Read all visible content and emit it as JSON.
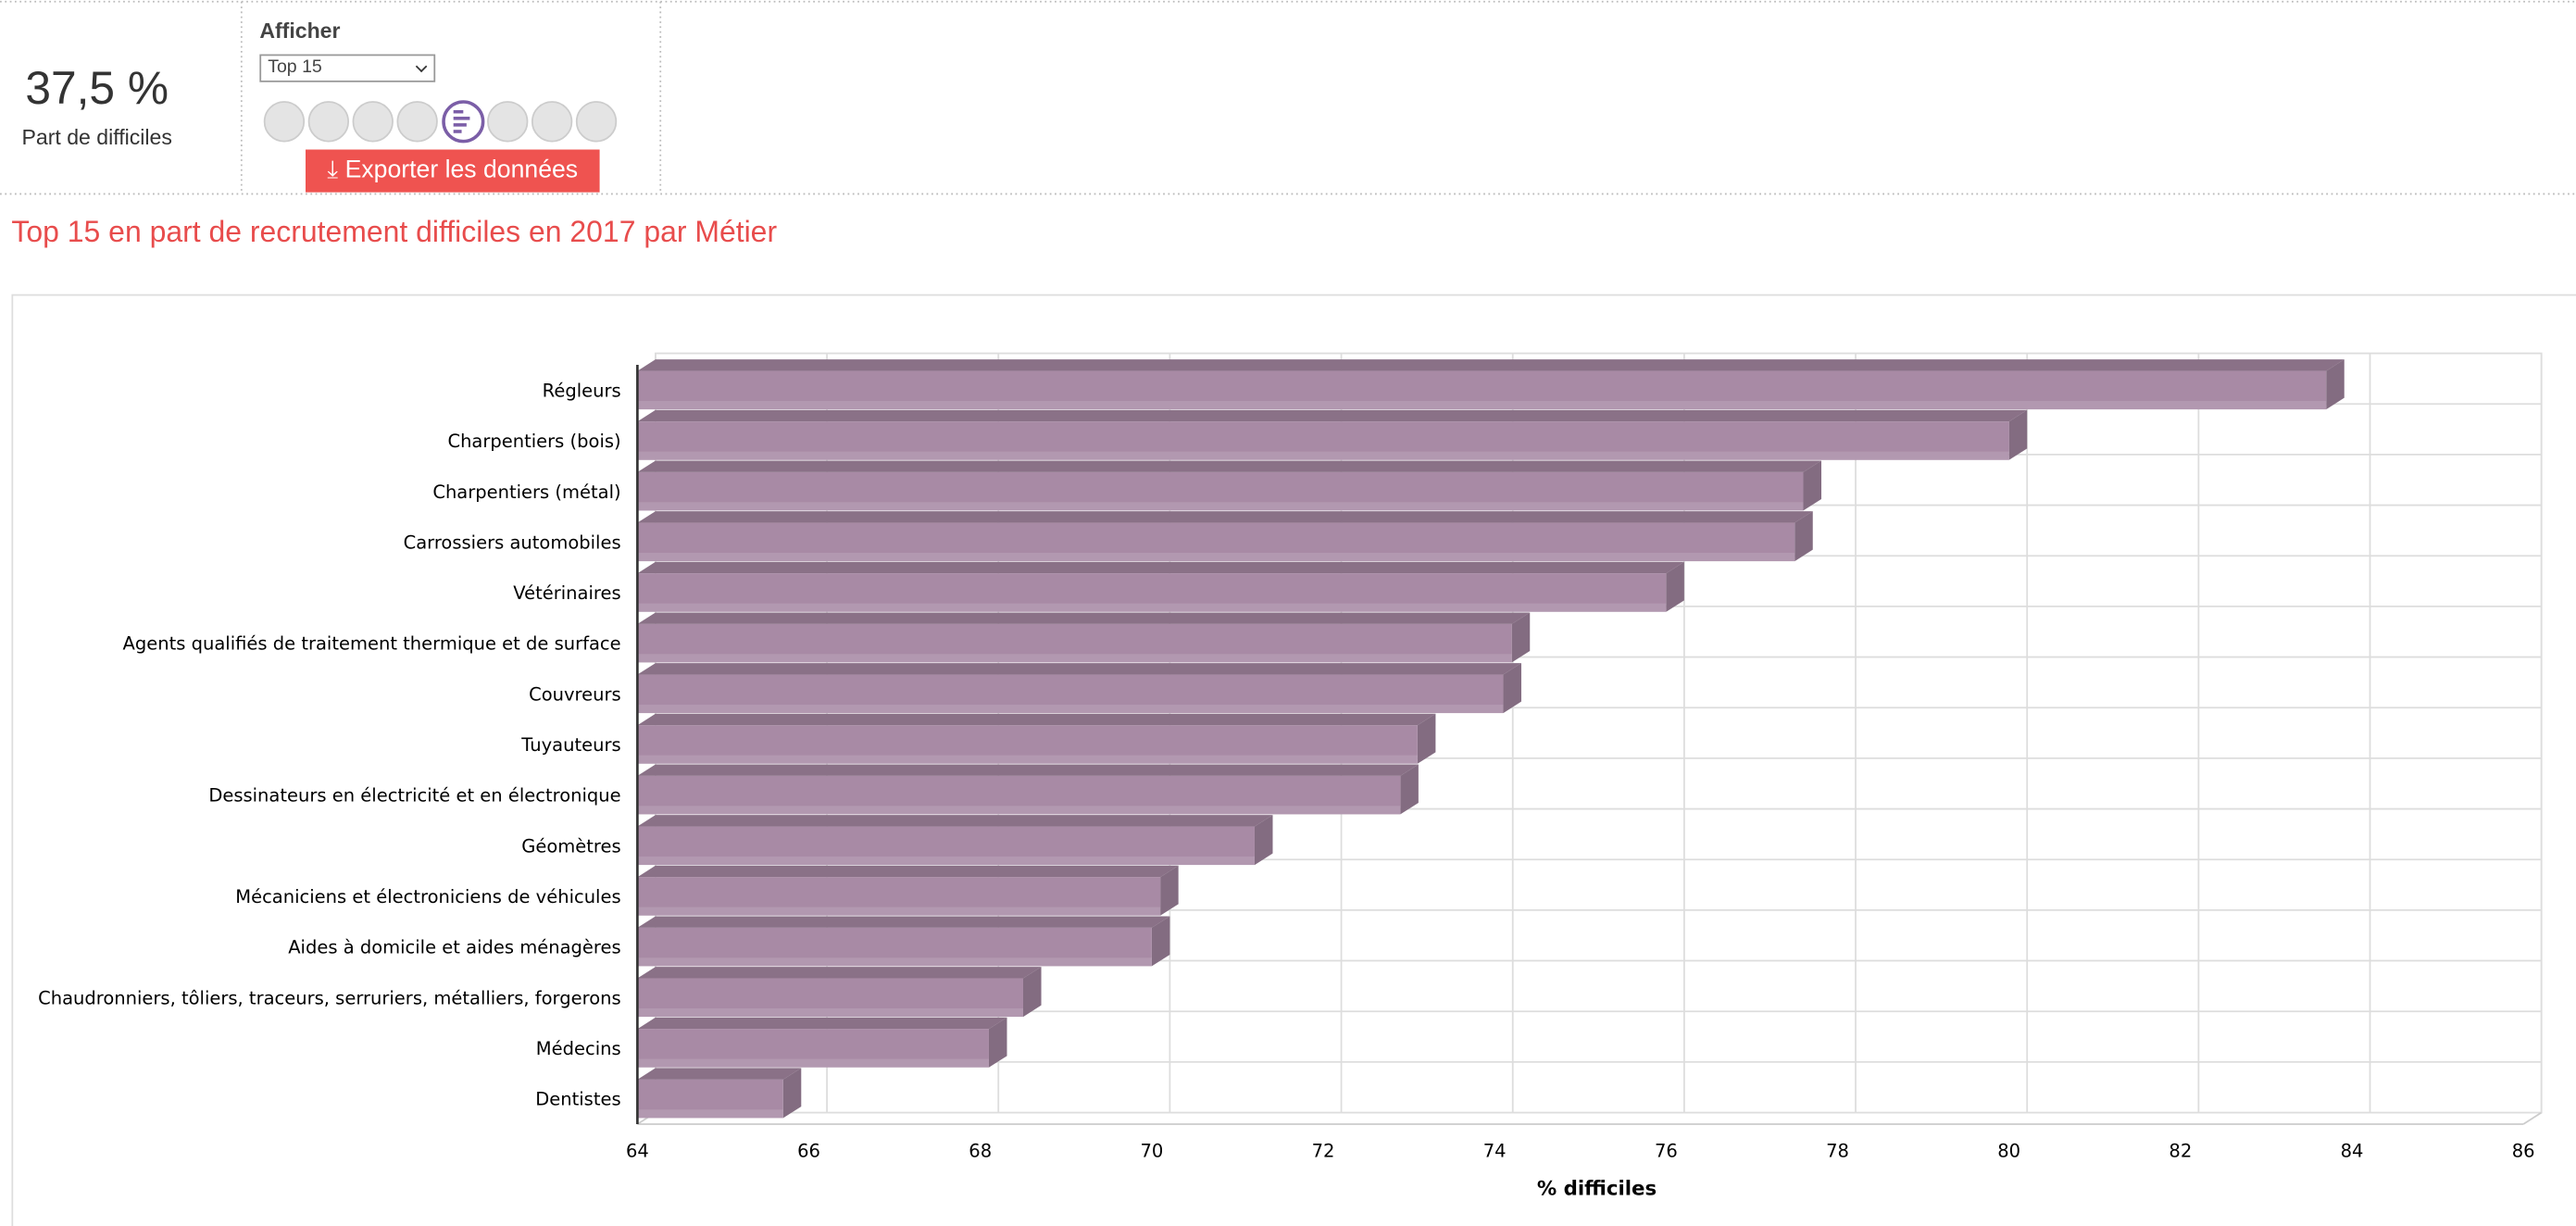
{
  "header": {
    "kpi_value": "37,5 %",
    "kpi_label": "Part de difficiles",
    "afficher_label": "Afficher",
    "select_value": "Top 15",
    "export_button": "Exporter les données"
  },
  "chart_data": {
    "type": "bar",
    "orientation": "horizontal",
    "title": "Top 15 en part de recrutement difficiles en 2017 par Métier",
    "x_label": "% difficiles",
    "categories": [
      "Régleurs",
      "Charpentiers (bois)",
      "Charpentiers (métal)",
      "Carrossiers automobiles",
      "Vétérinaires",
      "Agents qualifiés de traitement thermique et de surface",
      "Couvreurs",
      "Tuyauteurs",
      "Dessinateurs en électricité et en électronique",
      "Géomètres",
      "Mécaniciens et électroniciens de véhicules",
      "Aides à domicile et aides ménagères",
      "Chaudronniers, tôliers, traceurs, serruriers, métalliers, forgerons",
      "Médecins",
      "Dentistes"
    ],
    "values": [
      83.7,
      80.0,
      77.6,
      77.5,
      76.0,
      74.2,
      74.1,
      73.1,
      72.9,
      71.2,
      70.1,
      70.0,
      68.5,
      68.1,
      65.7
    ],
    "color": "#a88aa5",
    "xlim": [
      64,
      86
    ],
    "xticks": [
      64,
      66,
      68,
      70,
      72,
      74,
      76,
      78,
      80,
      82,
      84,
      86
    ],
    "grid": true
  }
}
